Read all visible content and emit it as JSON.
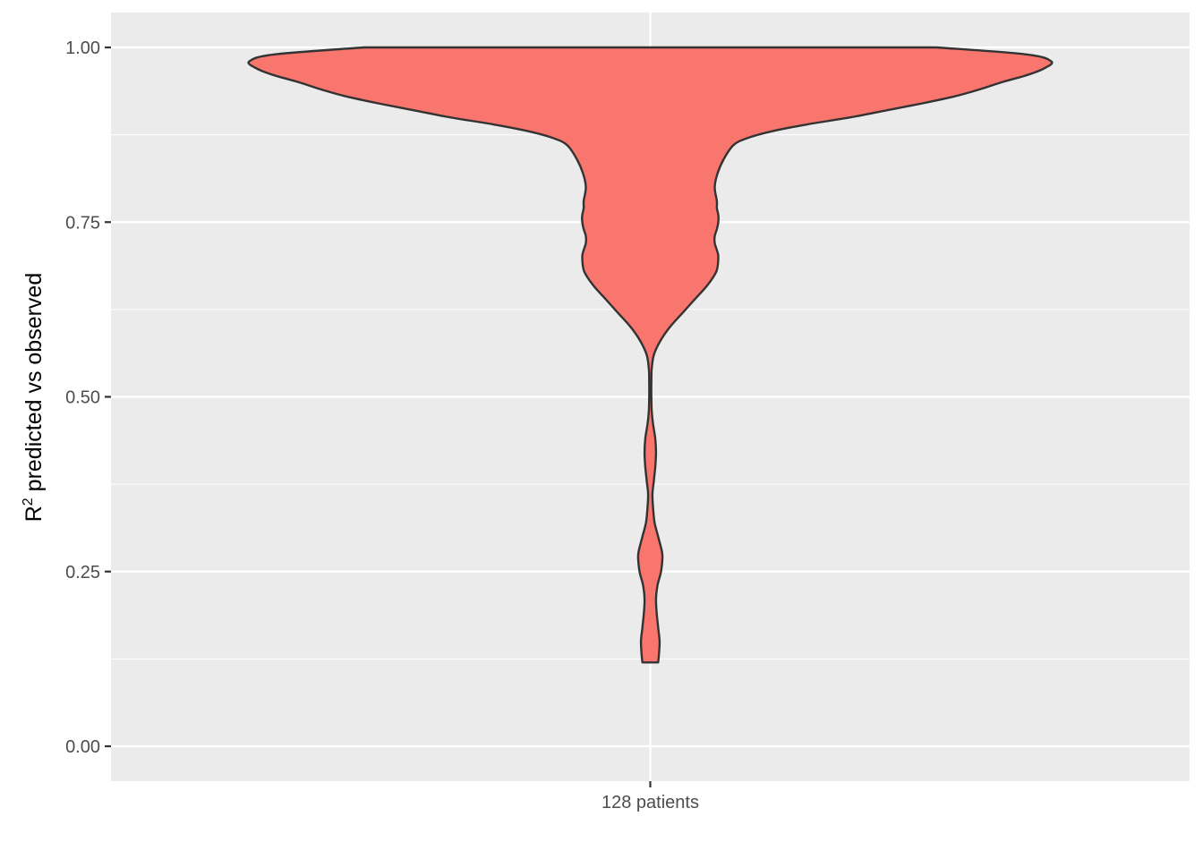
{
  "chart_data": {
    "type": "violin",
    "title": "",
    "xlabel": "",
    "ylabel_main": "R",
    "ylabel_sup": "2",
    "ylabel_rest": " predicted vs observed",
    "categories": [
      "128 patients"
    ],
    "ylim": [
      -0.05,
      1.05
    ],
    "y_ticks": [
      0.0,
      0.25,
      0.5,
      0.75,
      1.0
    ],
    "y_tick_labels": [
      "0.00",
      "0.25",
      "0.50",
      "0.75",
      "1.00"
    ],
    "grid": true,
    "legend": "none",
    "fill_color": "#f8766d",
    "outline_color": "#333333",
    "panel_background": "#ebebeb",
    "grid_color": "#ffffff",
    "violin_profile": {
      "y": [
        0.12,
        0.13,
        0.15,
        0.17,
        0.19,
        0.21,
        0.23,
        0.25,
        0.27,
        0.28,
        0.3,
        0.32,
        0.34,
        0.36,
        0.38,
        0.4,
        0.42,
        0.44,
        0.46,
        0.48,
        0.5,
        0.52,
        0.54,
        0.56,
        0.58,
        0.6,
        0.62,
        0.64,
        0.66,
        0.68,
        0.7,
        0.71,
        0.72,
        0.73,
        0.74,
        0.75,
        0.76,
        0.77,
        0.78,
        0.8,
        0.82,
        0.84,
        0.86,
        0.87,
        0.88,
        0.89,
        0.9,
        0.91,
        0.92,
        0.93,
        0.94,
        0.95,
        0.96,
        0.97,
        0.98,
        0.99,
        1.0
      ],
      "relative_width": [
        0.022,
        0.024,
        0.026,
        0.022,
        0.018,
        0.016,
        0.02,
        0.03,
        0.034,
        0.032,
        0.022,
        0.012,
        0.008,
        0.006,
        0.01,
        0.014,
        0.016,
        0.014,
        0.008,
        0.004,
        0.003,
        0.003,
        0.004,
        0.01,
        0.028,
        0.055,
        0.09,
        0.125,
        0.16,
        0.185,
        0.19,
        0.186,
        0.18,
        0.18,
        0.186,
        0.19,
        0.19,
        0.186,
        0.186,
        0.18,
        0.188,
        0.205,
        0.232,
        0.27,
        0.34,
        0.44,
        0.56,
        0.66,
        0.76,
        0.85,
        0.92,
        0.98,
        1.05,
        1.1,
        1.12,
        1.05,
        0.8
      ]
    }
  }
}
